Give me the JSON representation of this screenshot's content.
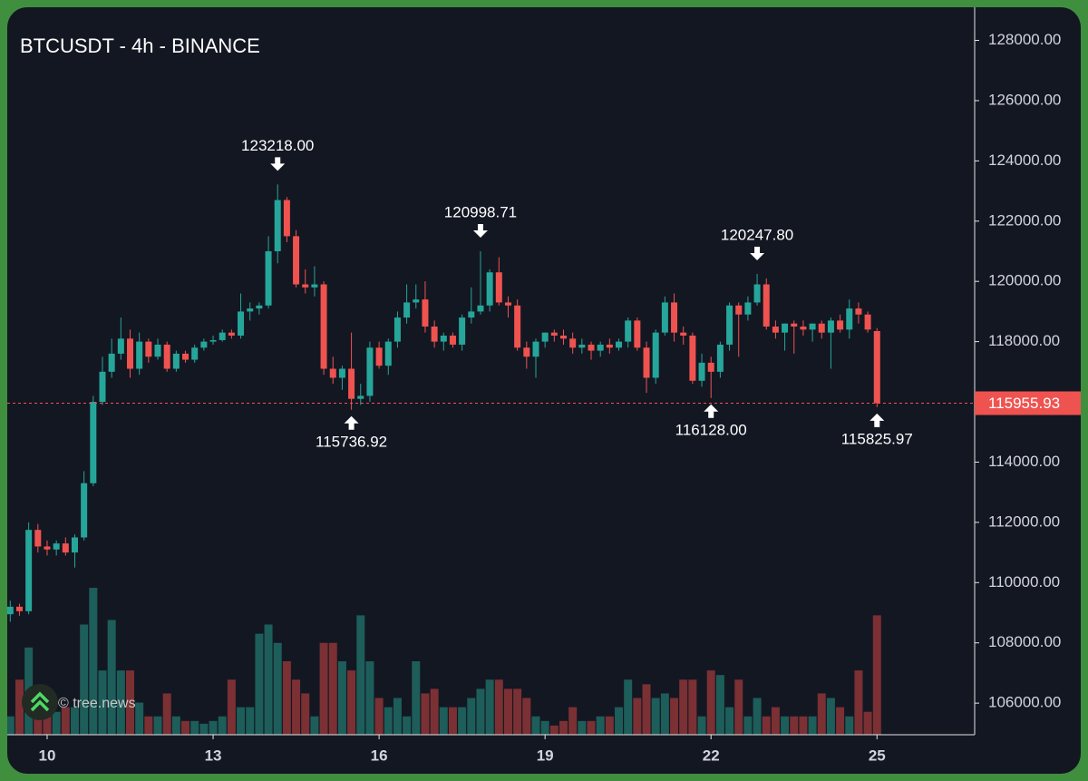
{
  "chart_data": {
    "type": "candlestick",
    "title": "BTCUSDT - 4h - BINANCE",
    "watermark": "© tree.news",
    "categories": [
      null,
      null,
      null,
      null,
      "10",
      null,
      null,
      null,
      null,
      null,
      null,
      null,
      null,
      null,
      null,
      null,
      null,
      null,
      null,
      null,
      null,
      null,
      "13",
      null,
      null,
      null,
      null,
      null,
      null,
      null,
      null,
      null,
      null,
      null,
      null,
      null,
      null,
      null,
      null,
      null,
      "16",
      null,
      null,
      null,
      null,
      null,
      null,
      null,
      null,
      null,
      null,
      null,
      null,
      null,
      null,
      null,
      null,
      null,
      "19",
      null,
      null,
      null,
      null,
      null,
      null,
      null,
      null,
      null,
      null,
      null,
      null,
      null,
      null,
      null,
      null,
      null,
      "22",
      null,
      null,
      null,
      null,
      null,
      null,
      null,
      null,
      null,
      null,
      null,
      null,
      null,
      null,
      null,
      null,
      null,
      "25"
    ],
    "open": [
      108950,
      109200,
      109050,
      111750,
      111200,
      111100,
      111300,
      111000,
      111500,
      113300,
      116000,
      117000,
      117600,
      118100,
      117100,
      118000,
      117500,
      117900,
      117100,
      117600,
      117400,
      117800,
      118000,
      118050,
      118300,
      118200,
      119000,
      119100,
      119200,
      121000,
      122700,
      121500,
      119900,
      119800,
      119900,
      117100,
      116800,
      117100,
      116100,
      116200,
      117800,
      117200,
      118000,
      118800,
      119300,
      119400,
      118500,
      118000,
      118200,
      117900,
      118800,
      119000,
      119200,
      120300,
      119300,
      119200,
      117800,
      117500,
      118000,
      118300,
      118200,
      118100,
      117800,
      117900,
      117700,
      117900,
      117800,
      118000,
      118700,
      117800,
      116800,
      118300,
      119300,
      118300,
      118200,
      116700,
      117300,
      117000,
      117900,
      119200,
      118900,
      119300,
      119900,
      118500,
      118300,
      118600,
      118500,
      118400,
      118600,
      118300,
      118700,
      118400,
      119100,
      118900,
      118350
    ],
    "high": [
      109400,
      109300,
      112000,
      111950,
      111400,
      111400,
      111500,
      111600,
      113700,
      116200,
      117500,
      118100,
      118800,
      118400,
      118300,
      118100,
      118100,
      118000,
      117700,
      117700,
      117900,
      118100,
      118200,
      118400,
      118400,
      119600,
      119300,
      119300,
      121500,
      123218,
      122800,
      121700,
      120400,
      120500,
      120000,
      117500,
      117200,
      118300,
      116600,
      118000,
      118000,
      118100,
      119000,
      119900,
      119900,
      120000,
      118700,
      118300,
      118300,
      118900,
      119800,
      120998.71,
      120400,
      120800,
      119500,
      119400,
      118000,
      118100,
      118300,
      118400,
      118400,
      118300,
      118100,
      118000,
      118000,
      118100,
      118100,
      118800,
      118800,
      118000,
      118400,
      119500,
      119600,
      118500,
      118300,
      117600,
      117500,
      118000,
      119300,
      119300,
      119500,
      120247.8,
      120100,
      118700,
      118600,
      118700,
      118700,
      118600,
      118700,
      118800,
      118900,
      119400,
      119300,
      119000,
      118450
    ],
    "low": [
      108700,
      108900,
      108950,
      111000,
      110900,
      110900,
      110900,
      110500,
      111400,
      113200,
      115900,
      116800,
      117400,
      116800,
      116900,
      117300,
      117400,
      117000,
      117000,
      117300,
      117300,
      117700,
      117900,
      118000,
      118100,
      118100,
      118700,
      118900,
      119100,
      120600,
      121300,
      119800,
      119600,
      119500,
      116900,
      116600,
      116400,
      115736.92,
      115900,
      116000,
      117100,
      116900,
      117800,
      118600,
      119100,
      118300,
      117800,
      117700,
      117800,
      117700,
      118600,
      118900,
      119000,
      119200,
      118800,
      117700,
      117100,
      116800,
      117800,
      118000,
      117900,
      117600,
      117600,
      117400,
      117500,
      117600,
      117700,
      117800,
      117700,
      116300,
      116600,
      118200,
      118000,
      117900,
      116600,
      116500,
      116128,
      116800,
      117700,
      117500,
      118700,
      119200,
      118400,
      118100,
      117700,
      117600,
      118200,
      118000,
      118100,
      117100,
      118300,
      118100,
      118600,
      118300,
      115825.97
    ],
    "close": [
      109200,
      109050,
      111750,
      111200,
      111100,
      111300,
      111000,
      111500,
      113300,
      116000,
      117000,
      117600,
      118100,
      117100,
      118000,
      117500,
      117900,
      117100,
      117600,
      117400,
      117800,
      118000,
      118050,
      118300,
      118200,
      119000,
      119100,
      119200,
      121000,
      122700,
      121500,
      119900,
      119800,
      119900,
      117100,
      116800,
      117100,
      116100,
      116200,
      117800,
      117200,
      118000,
      118800,
      119300,
      119400,
      118500,
      118000,
      118200,
      117900,
      118800,
      119000,
      119200,
      120300,
      119300,
      119200,
      117800,
      117500,
      118000,
      118300,
      118200,
      118100,
      117800,
      117900,
      117700,
      117900,
      117800,
      118000,
      118700,
      117800,
      116800,
      118300,
      119300,
      118300,
      118200,
      116700,
      117300,
      117000,
      117900,
      119200,
      118900,
      119300,
      119900,
      118500,
      118300,
      118600,
      118500,
      118400,
      118600,
      118300,
      118700,
      118400,
      119100,
      118900,
      118400,
      115955.93
    ],
    "volume": [
      20,
      60,
      95,
      45,
      20,
      25,
      30,
      30,
      120,
      160,
      70,
      125,
      70,
      70,
      35,
      20,
      20,
      45,
      20,
      15,
      15,
      12,
      15,
      20,
      60,
      30,
      30,
      110,
      120,
      100,
      80,
      60,
      45,
      20,
      100,
      100,
      80,
      70,
      130,
      80,
      40,
      30,
      40,
      20,
      80,
      45,
      50,
      30,
      30,
      30,
      40,
      50,
      60,
      60,
      50,
      50,
      40,
      20,
      15,
      10,
      15,
      30,
      15,
      15,
      20,
      20,
      30,
      60,
      40,
      55,
      40,
      45,
      40,
      60,
      60,
      20,
      70,
      65,
      30,
      60,
      20,
      40,
      20,
      30,
      20,
      20,
      20,
      20,
      45,
      40,
      30,
      20,
      70,
      25,
      130
    ],
    "up_color": "#26a69a",
    "down_color": "#ef5350",
    "volume_up_color": "#1d5d5a",
    "volume_down_color": "#7b3034",
    "annotations": [
      {
        "index": 29,
        "position": "above",
        "label": "123218.00"
      },
      {
        "index": 37,
        "position": "below",
        "label": "115736.92"
      },
      {
        "index": 51,
        "position": "above",
        "label": "120998.71"
      },
      {
        "index": 76,
        "position": "below",
        "label": "116128.00"
      },
      {
        "index": 81,
        "position": "above",
        "label": "120247.80"
      },
      {
        "index": 94,
        "position": "below",
        "label": "115825.97"
      }
    ],
    "last_price_label": "115955.93",
    "ylim": [
      104950,
      129100
    ],
    "yticks": [
      {
        "value": 106000,
        "label": "106000.00"
      },
      {
        "value": 108000,
        "label": "108000.00"
      },
      {
        "value": 110000,
        "label": "110000.00"
      },
      {
        "value": 112000,
        "label": "112000.00"
      },
      {
        "value": 114000,
        "label": "114000.00"
      },
      {
        "value": 116000,
        "label": "116000.00"
      },
      {
        "value": 118000,
        "label": "118000.00"
      },
      {
        "value": 120000,
        "label": "120000.00"
      },
      {
        "value": 122000,
        "label": "122000.00"
      },
      {
        "value": 124000,
        "label": "124000.00"
      },
      {
        "value": 126000,
        "label": "126000.00"
      },
      {
        "value": 128000,
        "label": "128000.00"
      }
    ],
    "grid": true
  }
}
